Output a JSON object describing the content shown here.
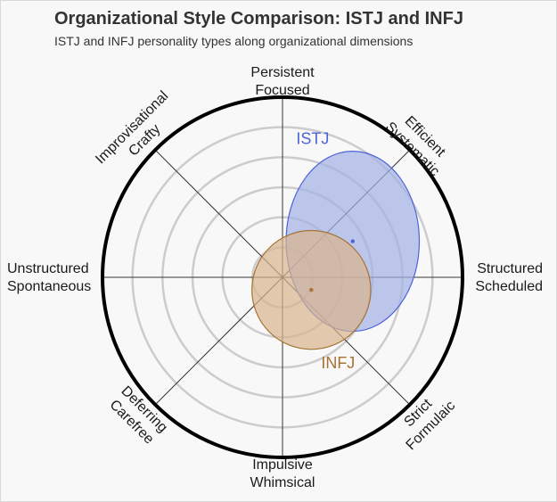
{
  "title": "Organizational Style Comparison: ISTJ and INFJ",
  "subtitle": "ISTJ and INFJ personality types along organizational dimensions",
  "chart_data": {
    "type": "scatter",
    "title": "Organizational Style Comparison: ISTJ and INFJ",
    "subtitle": "ISTJ and INFJ personality types along organizational dimensions",
    "axes": {
      "persistent": [
        "Persistent",
        "Focused"
      ],
      "efficient": [
        "Efficient",
        "Systematic"
      ],
      "structured": [
        "Structured",
        "Scheduled"
      ],
      "strict": [
        "Strict",
        "Formulaic"
      ],
      "impulsive": [
        "Impulsive",
        "Whimsical"
      ],
      "deferring": [
        "Deferring",
        "Carefree"
      ],
      "unstructured": [
        "Unstructured",
        "Spontaneous"
      ],
      "improvisational": [
        "Improvisational",
        "Crafty"
      ]
    },
    "xlim": [
      -100,
      100
    ],
    "ylim": [
      -100,
      100
    ],
    "grid_rings": 5,
    "series": [
      {
        "name": "ISTJ",
        "x": 39,
        "y": 20,
        "spread_x": 37,
        "spread_y": 50,
        "color": "#4c64d9",
        "fill": "#a3b0e6"
      },
      {
        "name": "INFJ",
        "x": 16,
        "y": -7,
        "spread_x": 33,
        "spread_y": 33,
        "color": "#a67333",
        "fill": "#d9b38c"
      }
    ]
  }
}
